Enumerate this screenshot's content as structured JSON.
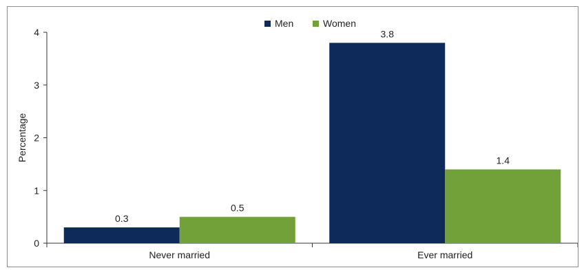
{
  "chart_data": {
    "type": "bar",
    "categories": [
      "Never married",
      "Ever married"
    ],
    "series": [
      {
        "name": "Men",
        "values": [
          0.3,
          3.8
        ],
        "color": "#0d2a5a"
      },
      {
        "name": "Women",
        "values": [
          0.5,
          1.4
        ],
        "color": "#72a13a"
      }
    ],
    "data_labels": [
      [
        "0.3",
        "3.8"
      ],
      [
        "0.5",
        "1.4"
      ]
    ],
    "ylabel": "Percentage",
    "xlabel": "",
    "ylim": [
      0,
      4
    ],
    "yticks": [
      0,
      1,
      2,
      3,
      4
    ],
    "legend_position": "top-center",
    "grid": false
  }
}
